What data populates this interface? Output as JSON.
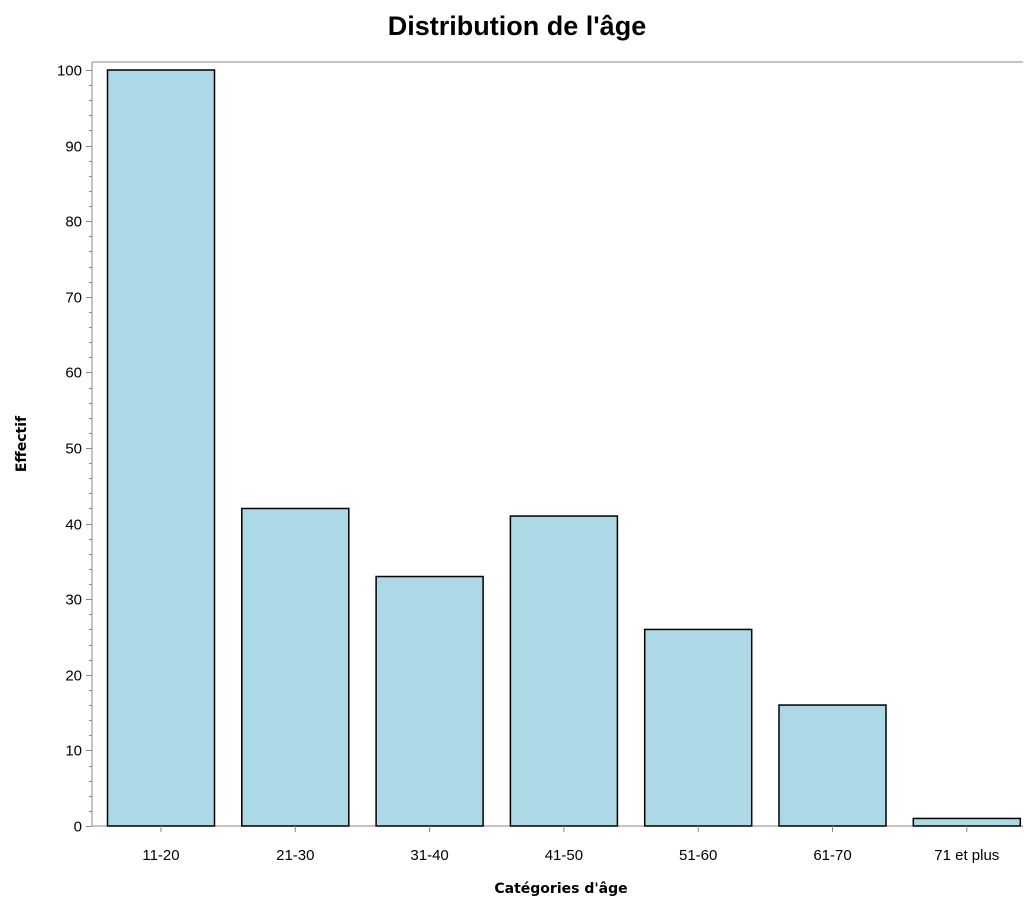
{
  "chart_data": {
    "type": "bar",
    "title": "Distribution de l'âge",
    "xlabel": "Catégories d'âge",
    "ylabel": "Effectif",
    "categories": [
      "11-20",
      "21-30",
      "31-40",
      "41-50",
      "51-60",
      "61-70",
      "71 et plus"
    ],
    "values": [
      100,
      42,
      33,
      41,
      26,
      16,
      1
    ],
    "ylim": [
      0,
      100
    ],
    "yticks": [
      0,
      10,
      20,
      30,
      40,
      50,
      60,
      70,
      80,
      90,
      100
    ],
    "grid": false,
    "legend": "none",
    "colors": {
      "bar_fill": "#add8e6",
      "bar_stroke": "#000000",
      "axis": "#888888",
      "text": "#000000"
    }
  }
}
